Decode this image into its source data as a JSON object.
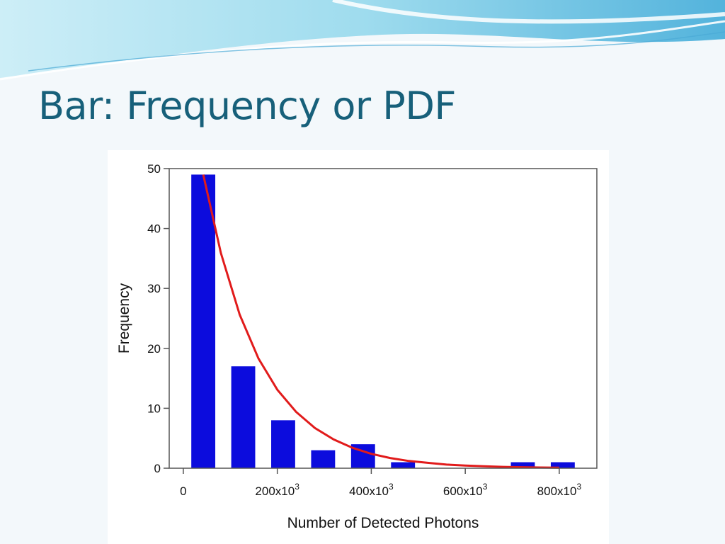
{
  "slide": {
    "title": "Bar: Frequency or PDF"
  },
  "colors": {
    "title": "#17607a",
    "bar": "#0c0cdd",
    "curve": "#e11b1b",
    "wave_light": "#bfe7f3",
    "wave_mid": "#7fd0e8",
    "wave_dark": "#4aa9d6"
  },
  "chart_data": {
    "type": "bar",
    "xlabel": "Number of Detected Photons",
    "ylabel": "Frequency",
    "xlim": [
      -30000,
      880000
    ],
    "ylim": [
      0,
      50
    ],
    "x_ticks": [
      {
        "value": 0,
        "label": "0",
        "exp": ""
      },
      {
        "value": 200000,
        "label": "200x10",
        "exp": "3"
      },
      {
        "value": 400000,
        "label": "400x10",
        "exp": "3"
      },
      {
        "value": 600000,
        "label": "600x10",
        "exp": "3"
      },
      {
        "value": 800000,
        "label": "800x10",
        "exp": "3"
      }
    ],
    "y_ticks": [
      {
        "value": 0,
        "label": "0"
      },
      {
        "value": 10,
        "label": "10"
      },
      {
        "value": 20,
        "label": "20"
      },
      {
        "value": 30,
        "label": "30"
      },
      {
        "value": 40,
        "label": "40"
      },
      {
        "value": 50,
        "label": "50"
      }
    ],
    "bin_width": 85000,
    "bin_edges": [
      0,
      85000,
      170000,
      255000,
      340000,
      425000,
      510000,
      595000,
      680000,
      765000,
      850000
    ],
    "values": [
      49,
      17,
      8,
      3,
      4,
      1,
      0,
      0,
      1,
      1
    ],
    "series": [
      {
        "type": "line",
        "x": [
          42500,
          80000,
          120000,
          160000,
          200000,
          240000,
          280000,
          320000,
          360000,
          400000,
          440000,
          480000,
          520000,
          560000,
          600000,
          640000,
          680000,
          720000,
          760000,
          800000
        ],
        "y": [
          49,
          35.9,
          25.6,
          18.3,
          13.1,
          9.4,
          6.7,
          4.8,
          3.4,
          2.4,
          1.7,
          1.2,
          0.9,
          0.6,
          0.45,
          0.32,
          0.23,
          0.16,
          0.12,
          0.08
        ]
      }
    ],
    "grid": false,
    "legend": "none"
  }
}
